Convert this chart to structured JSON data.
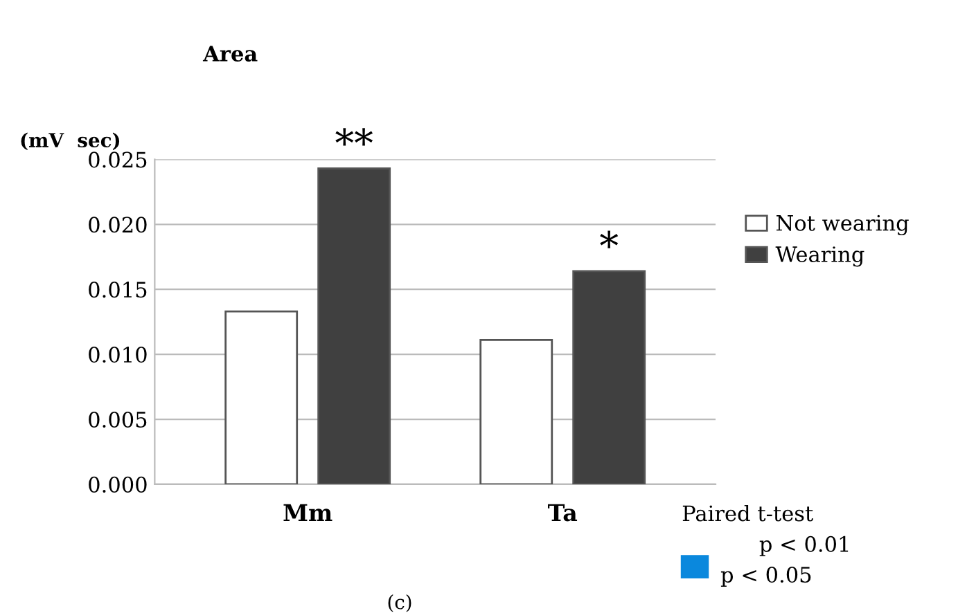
{
  "chart_data": {
    "type": "bar",
    "title": "Area",
    "ylabel": "(mV  sec)",
    "categories": [
      "Mm",
      "Ta"
    ],
    "series": [
      {
        "name": "Not wearing",
        "color": "#ffffff",
        "values": [
          0.0133,
          0.0111
        ]
      },
      {
        "name": "Wearing",
        "color": "#404040",
        "values": [
          0.0243,
          0.0164
        ]
      }
    ],
    "ylim": [
      0,
      0.025
    ],
    "yticks": [
      {
        "value": 0,
        "label": "0.000"
      },
      {
        "value": 0.005,
        "label": "0.005"
      },
      {
        "value": 0.01,
        "label": "0.010"
      },
      {
        "value": 0.015,
        "label": "0.015"
      },
      {
        "value": 0.02,
        "label": "0.020"
      },
      {
        "value": 0.025,
        "label": "0.025"
      }
    ],
    "grid": "y",
    "legend": "right",
    "annotations": [
      "**",
      "*",
      "Paired t-test",
      "p < 0.01",
      "p < 0.05",
      "(c)"
    ]
  }
}
